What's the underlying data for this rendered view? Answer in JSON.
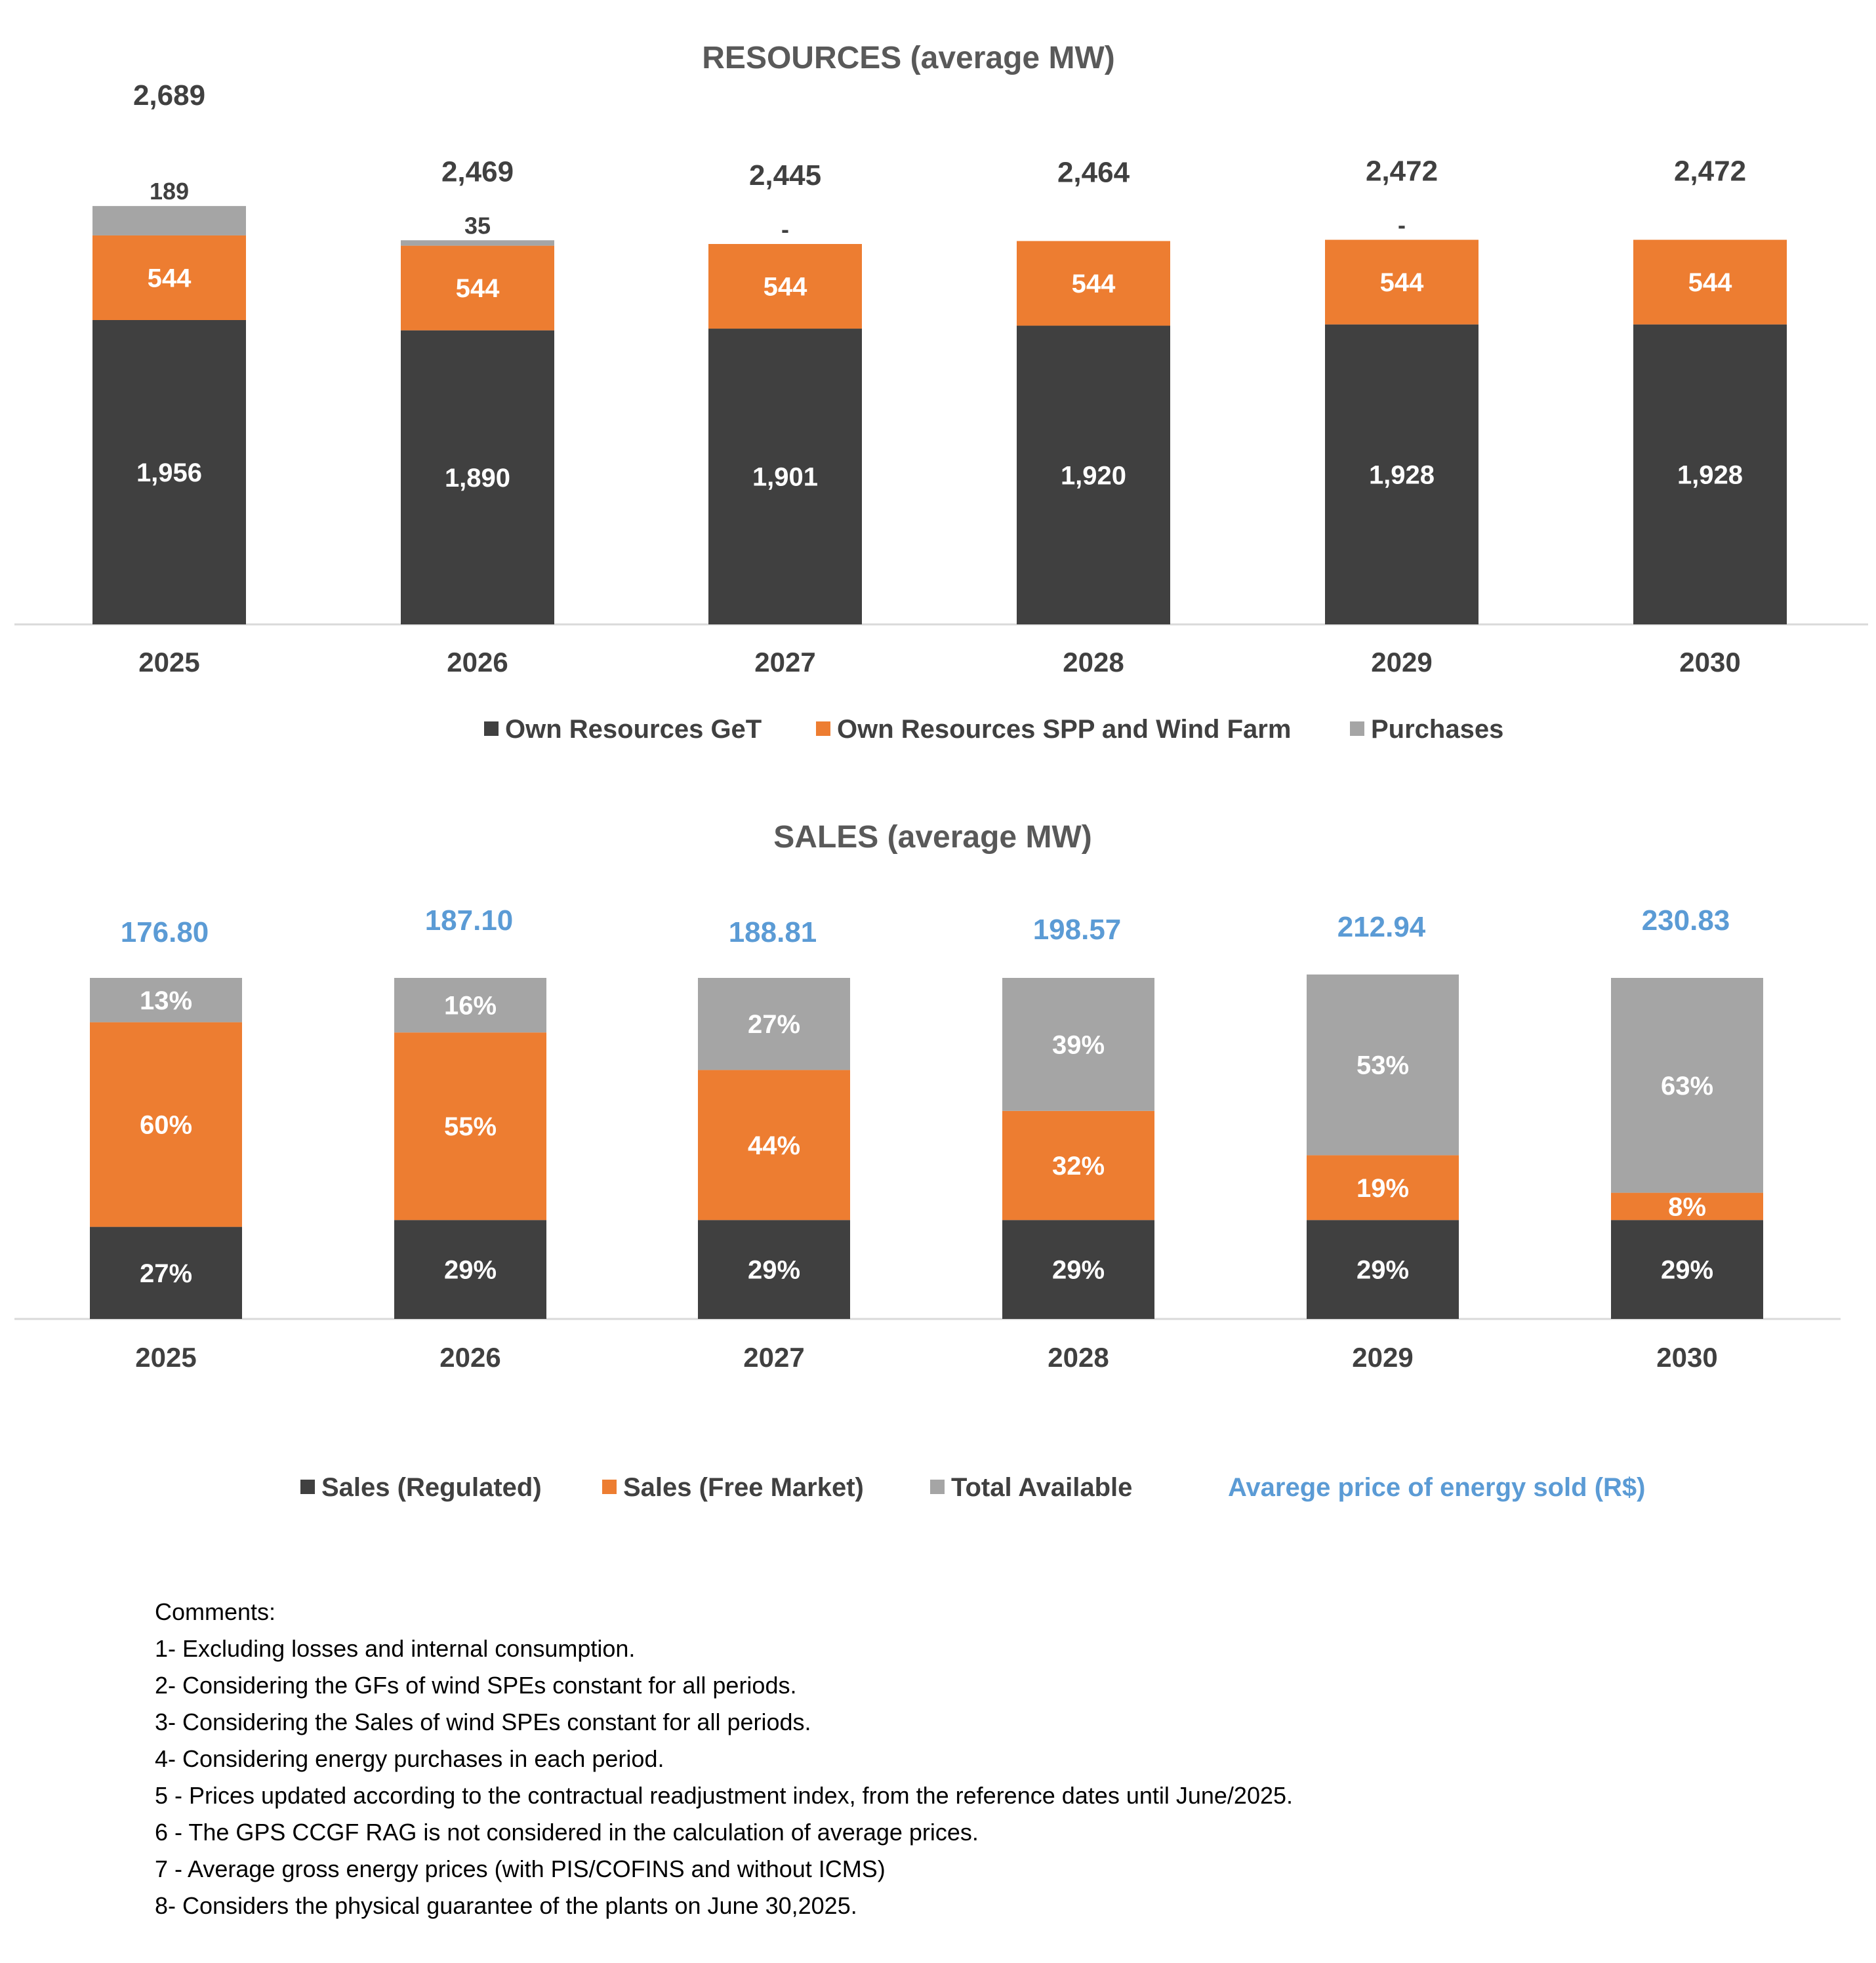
{
  "chart_data": [
    {
      "type": "bar",
      "stacked": true,
      "title": "RESOURCES (average MW)",
      "categories": [
        "2025",
        "2026",
        "2027",
        "2028",
        "2029",
        "2030"
      ],
      "series": [
        {
          "name": "Own Resources GeT",
          "color": "#404040",
          "values": [
            1956,
            1890,
            1901,
            1920,
            1928,
            1928
          ],
          "labels": [
            "1,956",
            "1,890",
            "1,901",
            "1,920",
            "1,928",
            "1,928"
          ]
        },
        {
          "name": "Own Resources SPP and Wind Farm",
          "color": "#ed7d31",
          "values": [
            544,
            544,
            544,
            544,
            544,
            544
          ],
          "labels": [
            "544",
            "544",
            "544",
            "544",
            "544",
            "544"
          ]
        },
        {
          "name": "Purchases",
          "color": "#a5a5a5",
          "values": [
            189,
            35,
            0,
            0,
            0,
            0
          ],
          "labels": [
            "189",
            "35",
            "-",
            "",
            "-",
            ""
          ]
        }
      ],
      "totals": [
        "2,689",
        "2,469",
        "2,445",
        "2,464",
        "2,472",
        "2,472"
      ],
      "ylim": [
        0,
        2700
      ]
    },
    {
      "type": "bar",
      "stacked": true,
      "title": "SALES (average MW)",
      "categories": [
        "2025",
        "2026",
        "2027",
        "2028",
        "2029",
        "2030"
      ],
      "series": [
        {
          "name": "Sales (Regulated)",
          "color": "#404040",
          "values": [
            27,
            29,
            29,
            29,
            29,
            29
          ],
          "labels": [
            "27%",
            "29%",
            "29%",
            "29%",
            "29%",
            "29%"
          ]
        },
        {
          "name": "Sales (Free Market)",
          "color": "#ed7d31",
          "values": [
            60,
            55,
            44,
            32,
            19,
            8
          ],
          "labels": [
            "60%",
            "55%",
            "44%",
            "32%",
            "19%",
            "8%"
          ]
        },
        {
          "name": "Total Available",
          "color": "#a5a5a5",
          "values": [
            13,
            16,
            27,
            39,
            53,
            63
          ],
          "labels": [
            "13%",
            "16%",
            "27%",
            "39%",
            "53%",
            "63%"
          ]
        }
      ],
      "line_series": {
        "name": "Avarege price of energy sold (R$)",
        "color": "#5b9bd5",
        "values": [
          176.8,
          187.1,
          188.81,
          198.57,
          212.94,
          230.83
        ],
        "labels": [
          "176.80",
          "187.10",
          "188.81",
          "198.57",
          "212.94",
          "230.83"
        ]
      },
      "ylim": [
        0,
        100
      ]
    }
  ],
  "comments": [
    "Comments:",
    "1- Excluding losses and internal consumption.",
    "2- Considering the GFs of wind SPEs constant for all periods.",
    "3- Considering the Sales of wind SPEs constant for all periods.",
    "4- Considering energy purchases in each period.",
    "5 - Prices updated according to the contractual readjustment index, from the reference dates until June/2025.",
    "6 - The GPS CCGF RAG is not considered in the calculation of average prices.",
    "7 - Average gross energy prices (with PIS/COFINS and without ICMS)",
    "8- Considers the physical guarantee of the plants on June 30,2025."
  ]
}
